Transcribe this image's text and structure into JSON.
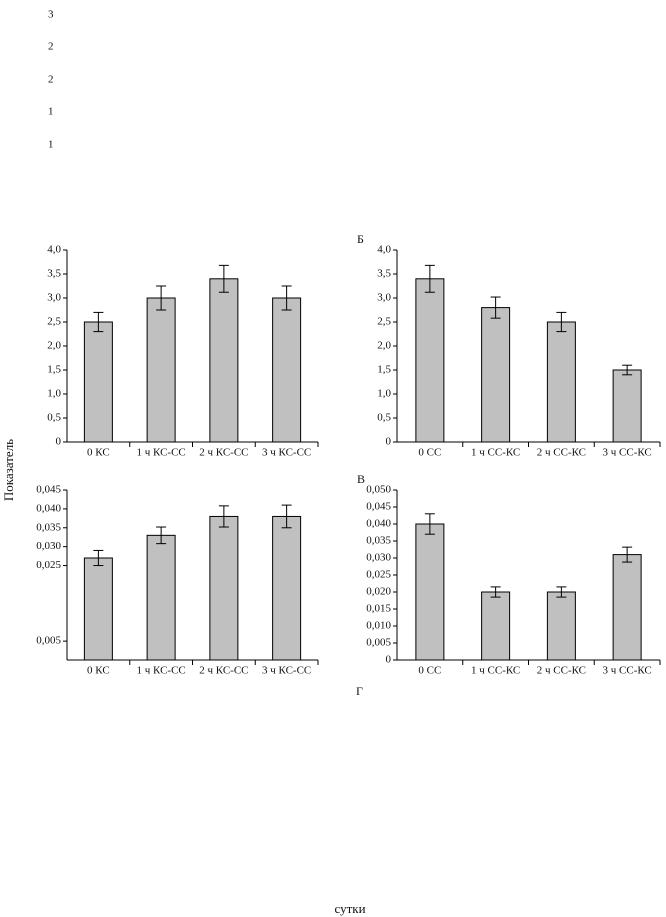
{
  "fragment_labels": [
    "3",
    "2",
    "2",
    "1",
    "1"
  ],
  "y_label": "Показатель",
  "x_label": "сутки",
  "extra_panel_label": "Г",
  "chart_data": [
    {
      "type": "bar",
      "color": "#c0c0c0",
      "categories": [
        "0 КС",
        "1 ч КС-СС",
        "2 ч КС-СС",
        "3 ч КС-СС"
      ],
      "values": [
        2.5,
        3.0,
        3.4,
        3.0
      ],
      "errors": [
        0.2,
        0.25,
        0.28,
        0.25
      ],
      "ylim": [
        0,
        4
      ],
      "yticks": [
        {
          "value": 0,
          "label": "0"
        },
        {
          "value": 0.5,
          "label": "0,5"
        },
        {
          "value": 1,
          "label": "1,0"
        },
        {
          "value": 1.5,
          "label": "1,5"
        },
        {
          "value": 2,
          "label": "2,0"
        },
        {
          "value": 2.5,
          "label": "2,5"
        },
        {
          "value": 3,
          "label": "3,0"
        },
        {
          "value": 3.5,
          "label": "3,5"
        },
        {
          "value": 4,
          "label": "4,0"
        }
      ]
    },
    {
      "type": "bar",
      "panel": "Б",
      "color": "#c0c0c0",
      "categories": [
        "0 СС",
        "1 ч СС-КС",
        "2 ч СС-КС",
        "3 ч СС-КС"
      ],
      "values": [
        3.4,
        2.8,
        2.5,
        1.5
      ],
      "errors": [
        0.28,
        0.22,
        0.2,
        0.1
      ],
      "ylim": [
        0,
        4
      ],
      "yticks": [
        {
          "value": 0,
          "label": "0"
        },
        {
          "value": 0.5,
          "label": "0,5"
        },
        {
          "value": 1,
          "label": "1,0"
        },
        {
          "value": 1.5,
          "label": "1,5"
        },
        {
          "value": 2,
          "label": "2,0"
        },
        {
          "value": 2.5,
          "label": "2,5"
        },
        {
          "value": 3,
          "label": "3,0"
        },
        {
          "value": 3.5,
          "label": "3,5"
        },
        {
          "value": 4,
          "label": "4,0"
        }
      ]
    },
    {
      "type": "bar",
      "color": "#c0c0c0",
      "categories": [
        "0 КС",
        "1 ч КС-СС",
        "2 ч КС-СС",
        "3 ч КС-СС"
      ],
      "values": [
        0.027,
        0.033,
        0.038,
        0.038
      ],
      "errors": [
        0.002,
        0.0022,
        0.0028,
        0.003
      ],
      "ylim": [
        0,
        0.045
      ],
      "yticks": [
        {
          "value": 0.005,
          "label": "0,005"
        },
        {
          "value": 0.025,
          "label": "0,025"
        },
        {
          "value": 0.03,
          "label": "0,030"
        },
        {
          "value": 0.035,
          "label": "0,035"
        },
        {
          "value": 0.04,
          "label": "0,040"
        },
        {
          "value": 0.045,
          "label": "0,045"
        }
      ]
    },
    {
      "type": "bar",
      "panel": "В",
      "color": "#c0c0c0",
      "categories": [
        "0 СС",
        "1 ч СС-КС",
        "2 ч СС-КС",
        "3 ч СС-КС"
      ],
      "values": [
        0.04,
        0.02,
        0.02,
        0.031
      ],
      "errors": [
        0.003,
        0.0015,
        0.0015,
        0.0022
      ],
      "ylim": [
        0,
        0.05
      ],
      "yticks": [
        {
          "value": 0,
          "label": "0"
        },
        {
          "value": 0.005,
          "label": "0,005"
        },
        {
          "value": 0.01,
          "label": "0,010"
        },
        {
          "value": 0.015,
          "label": "0,015"
        },
        {
          "value": 0.02,
          "label": "0,020"
        },
        {
          "value": 0.025,
          "label": "0,025"
        },
        {
          "value": 0.03,
          "label": "0,030"
        },
        {
          "value": 0.035,
          "label": "0,035"
        },
        {
          "value": 0.04,
          "label": "0,040"
        },
        {
          "value": 0.045,
          "label": "0,045"
        },
        {
          "value": 0.05,
          "label": "0,050"
        }
      ]
    }
  ]
}
